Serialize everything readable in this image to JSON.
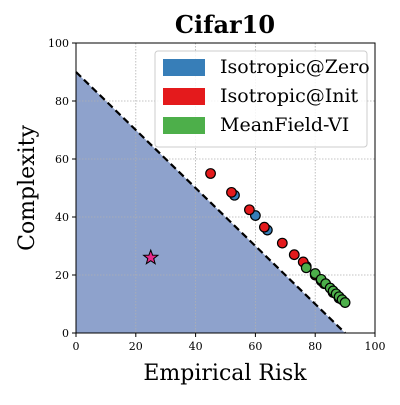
{
  "chart_data": {
    "type": "scatter",
    "title": "Cifar10",
    "xlabel": "Empirical Risk",
    "ylabel": "Complexity",
    "xlim": [
      0,
      100
    ],
    "ylim": [
      0,
      100
    ],
    "xticks": [
      "0",
      "20",
      "40",
      "60",
      "80",
      "100"
    ],
    "yticks": [
      "0",
      "20",
      "40",
      "60",
      "80",
      "100"
    ],
    "grid": true,
    "legend_position": "top-right",
    "feasible_region": {
      "boundary_line": [
        [
          0,
          90
        ],
        [
          90,
          0
        ]
      ],
      "fill_color": "#8ea2cc",
      "line_style": "dashed",
      "line_color": "#000000"
    },
    "marker": {
      "x": 25,
      "y": 26,
      "shape": "star",
      "color": "#e7298a"
    },
    "series": [
      {
        "name": "Isotropic@Zero",
        "color": "#377eb8",
        "points": [
          {
            "x": 53,
            "y": 47.5
          },
          {
            "x": 60,
            "y": 40.5
          },
          {
            "x": 64,
            "y": 35.5
          },
          {
            "x": 77,
            "y": 23
          },
          {
            "x": 82,
            "y": 18
          },
          {
            "x": 86,
            "y": 14
          },
          {
            "x": 88,
            "y": 12
          }
        ]
      },
      {
        "name": "Isotropic@Init",
        "color": "#e41a1c",
        "points": [
          {
            "x": 45,
            "y": 55
          },
          {
            "x": 52,
            "y": 48.5
          },
          {
            "x": 58,
            "y": 42.5
          },
          {
            "x": 63,
            "y": 36.5
          },
          {
            "x": 69,
            "y": 31
          },
          {
            "x": 73,
            "y": 27
          },
          {
            "x": 76,
            "y": 24.5
          },
          {
            "x": 80,
            "y": 20
          },
          {
            "x": 83,
            "y": 17
          },
          {
            "x": 86,
            "y": 14
          }
        ]
      },
      {
        "name": "MeanField-VI",
        "color": "#4daf4a",
        "points": [
          {
            "x": 77,
            "y": 22.5
          },
          {
            "x": 80,
            "y": 20.5
          },
          {
            "x": 82,
            "y": 18.5
          },
          {
            "x": 83.5,
            "y": 17
          },
          {
            "x": 85,
            "y": 15.5
          },
          {
            "x": 86,
            "y": 14.5
          },
          {
            "x": 87,
            "y": 13.5
          },
          {
            "x": 88,
            "y": 12.5
          },
          {
            "x": 89,
            "y": 11.5
          },
          {
            "x": 90,
            "y": 10.5
          }
        ]
      }
    ]
  }
}
